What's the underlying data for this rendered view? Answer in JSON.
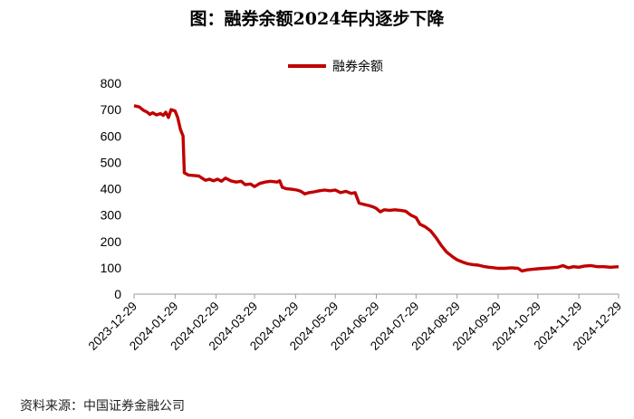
{
  "chart_data": {
    "type": "line",
    "title": "图：融券余额2024年内逐步下降",
    "legend_position": "top-center",
    "grid": false,
    "color": "#C00000",
    "ylim": [
      0,
      800
    ],
    "y_ticks": [
      0,
      100,
      200,
      300,
      400,
      500,
      600,
      700,
      800
    ],
    "x_ticks": [
      "2023-12-29",
      "2024-01-29",
      "2024-02-29",
      "2024-03-29",
      "2024-04-29",
      "2024-05-29",
      "2024-06-29",
      "2024-07-29",
      "2024-08-29",
      "2024-09-29",
      "2024-10-29",
      "2024-11-29",
      "2024-12-29"
    ],
    "series": [
      {
        "name": "融券余额",
        "points": [
          [
            "2023-12-29",
            715
          ],
          [
            "2024-01-02",
            710
          ],
          [
            "2024-01-05",
            698
          ],
          [
            "2024-01-08",
            690
          ],
          [
            "2024-01-10",
            682
          ],
          [
            "2024-01-12",
            688
          ],
          [
            "2024-01-15",
            680
          ],
          [
            "2024-01-18",
            685
          ],
          [
            "2024-01-20",
            678
          ],
          [
            "2024-01-22",
            690
          ],
          [
            "2024-01-24",
            670
          ],
          [
            "2024-01-26",
            700
          ],
          [
            "2024-01-29",
            695
          ],
          [
            "2024-01-31",
            670
          ],
          [
            "2024-02-02",
            625
          ],
          [
            "2024-02-04",
            600
          ],
          [
            "2024-02-05",
            460
          ],
          [
            "2024-02-08",
            452
          ],
          [
            "2024-02-12",
            450
          ],
          [
            "2024-02-16",
            448
          ],
          [
            "2024-02-19",
            438
          ],
          [
            "2024-02-21",
            432
          ],
          [
            "2024-02-24",
            436
          ],
          [
            "2024-02-27",
            430
          ],
          [
            "2024-03-01",
            436
          ],
          [
            "2024-03-04",
            428
          ],
          [
            "2024-03-07",
            440
          ],
          [
            "2024-03-11",
            430
          ],
          [
            "2024-03-15",
            425
          ],
          [
            "2024-03-19",
            428
          ],
          [
            "2024-03-22",
            415
          ],
          [
            "2024-03-26",
            418
          ],
          [
            "2024-03-29",
            408
          ],
          [
            "2024-04-02",
            420
          ],
          [
            "2024-04-06",
            425
          ],
          [
            "2024-04-10",
            428
          ],
          [
            "2024-04-15",
            425
          ],
          [
            "2024-04-17",
            430
          ],
          [
            "2024-04-19",
            405
          ],
          [
            "2024-04-22",
            400
          ],
          [
            "2024-04-26",
            398
          ],
          [
            "2024-04-30",
            395
          ],
          [
            "2024-05-03",
            390
          ],
          [
            "2024-05-06",
            380
          ],
          [
            "2024-05-09",
            385
          ],
          [
            "2024-05-13",
            388
          ],
          [
            "2024-05-17",
            392
          ],
          [
            "2024-05-21",
            395
          ],
          [
            "2024-05-25",
            392
          ],
          [
            "2024-05-29",
            395
          ],
          [
            "2024-06-02",
            385
          ],
          [
            "2024-06-06",
            390
          ],
          [
            "2024-06-10",
            382
          ],
          [
            "2024-06-13",
            385
          ],
          [
            "2024-06-16",
            345
          ],
          [
            "2024-06-20",
            340
          ],
          [
            "2024-06-24",
            335
          ],
          [
            "2024-06-27",
            330
          ],
          [
            "2024-06-29",
            325
          ],
          [
            "2024-07-02",
            312
          ],
          [
            "2024-07-05",
            320
          ],
          [
            "2024-07-09",
            318
          ],
          [
            "2024-07-13",
            320
          ],
          [
            "2024-07-17",
            318
          ],
          [
            "2024-07-21",
            315
          ],
          [
            "2024-07-25",
            300
          ],
          [
            "2024-07-29",
            290
          ],
          [
            "2024-08-01",
            265
          ],
          [
            "2024-08-05",
            255
          ],
          [
            "2024-08-09",
            240
          ],
          [
            "2024-08-13",
            215
          ],
          [
            "2024-08-17",
            185
          ],
          [
            "2024-08-21",
            160
          ],
          [
            "2024-08-26",
            140
          ],
          [
            "2024-08-29",
            130
          ],
          [
            "2024-09-02",
            122
          ],
          [
            "2024-09-06",
            115
          ],
          [
            "2024-09-10",
            112
          ],
          [
            "2024-09-14",
            110
          ],
          [
            "2024-09-18",
            105
          ],
          [
            "2024-09-22",
            102
          ],
          [
            "2024-09-26",
            100
          ],
          [
            "2024-09-29",
            98
          ],
          [
            "2024-10-04",
            98
          ],
          [
            "2024-10-09",
            100
          ],
          [
            "2024-10-14",
            98
          ],
          [
            "2024-10-17",
            88
          ],
          [
            "2024-10-21",
            92
          ],
          [
            "2024-10-25",
            94
          ],
          [
            "2024-10-29",
            96
          ],
          [
            "2024-11-03",
            98
          ],
          [
            "2024-11-08",
            100
          ],
          [
            "2024-11-13",
            102
          ],
          [
            "2024-11-17",
            108
          ],
          [
            "2024-11-21",
            100
          ],
          [
            "2024-11-25",
            104
          ],
          [
            "2024-11-29",
            102
          ],
          [
            "2024-12-03",
            106
          ],
          [
            "2024-12-08",
            108
          ],
          [
            "2024-12-13",
            104
          ],
          [
            "2024-12-18",
            104
          ],
          [
            "2024-12-23",
            102
          ],
          [
            "2024-12-29",
            104
          ]
        ]
      }
    ]
  },
  "source": "资料来源：中国证券金融公司"
}
